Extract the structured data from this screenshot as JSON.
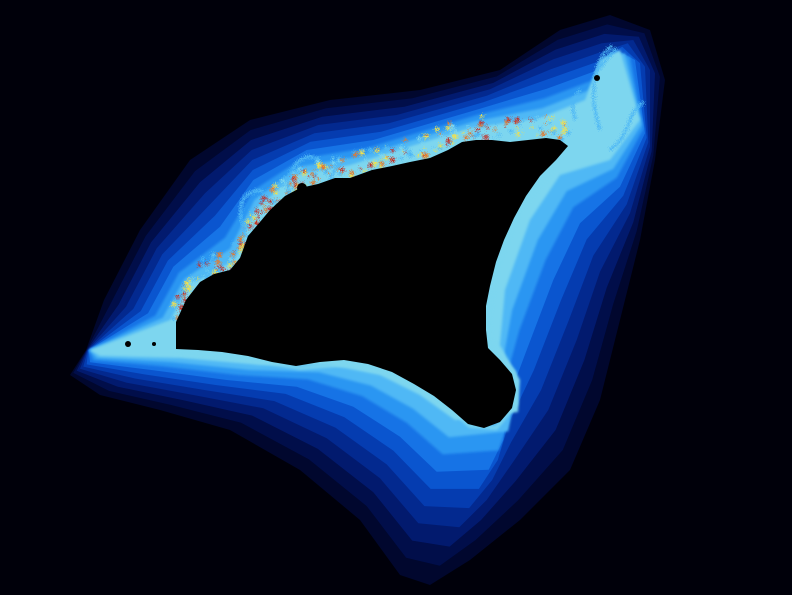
{
  "scene": {
    "description_kind": "escape-time fractal render",
    "colors": {
      "background": "#00000a",
      "band_outer": "#01072e",
      "band_2": "#010e4a",
      "band_3": "#021a6e",
      "band_4": "#03298f",
      "band_5": "#053cb0",
      "band_6": "#0a55cf",
      "band_7": "#1673e6",
      "band_8": "#2c96f2",
      "band_9": "#4fb8f5",
      "band_10": "#7dd6ef",
      "edge_hot_1": "#f0e050",
      "edge_hot_2": "#e07a30",
      "edge_hot_3": "#c0302a",
      "interior": "#000000"
    }
  }
}
